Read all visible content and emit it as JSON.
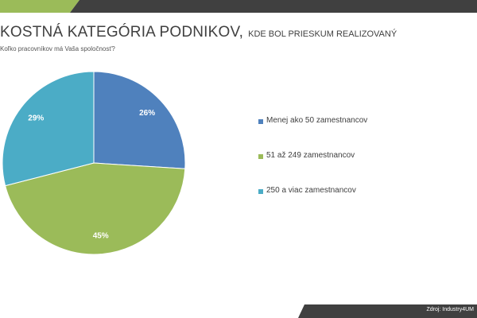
{
  "header": {
    "title_main": "KOSTNÁ KATEGÓRIA PODNIKOV,",
    "title_sub": "KDE BOL PRIESKUM REALIZOVANÝ",
    "question": "Koľko pracovníkov má Vaša spoločnosť?"
  },
  "footer": {
    "source": "Zdroj: Industry4UM"
  },
  "colors": {
    "accent_green": "#9bbb59",
    "bar_dark": "#404040"
  },
  "chart_data": {
    "type": "pie",
    "categories": [
      "Menej ako 50 zamestnancov",
      "51 až 249 zamestnancov",
      "250 a viac zamestnancov"
    ],
    "values": [
      26,
      45,
      29
    ],
    "data_labels": [
      "26%",
      "45%",
      "29%"
    ],
    "colors": [
      "#4f81bd",
      "#9bbb59",
      "#4bacc6"
    ],
    "legend_position": "right"
  }
}
